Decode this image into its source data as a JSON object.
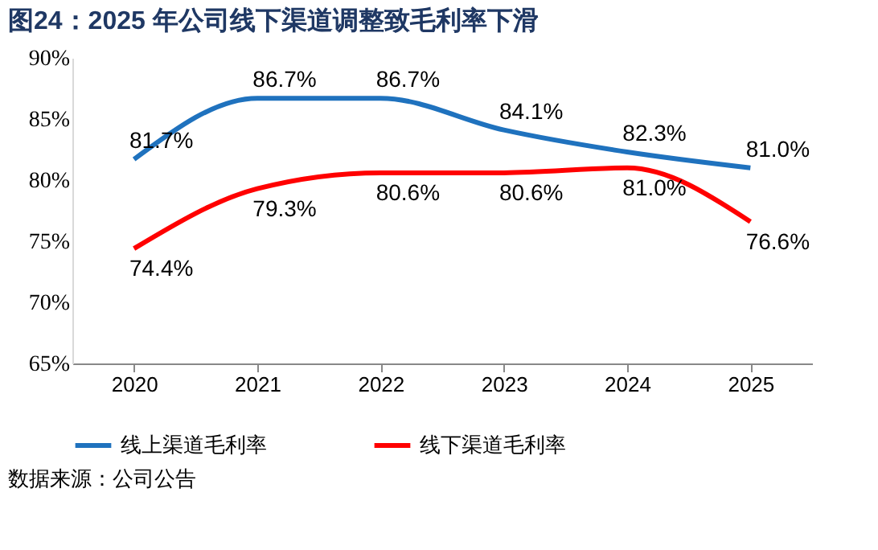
{
  "chart_data": {
    "type": "line",
    "title": "图24：2025 年公司线下渠道调整致毛利率下滑",
    "categories": [
      "2020",
      "2021",
      "2022",
      "2023",
      "2024",
      "2025"
    ],
    "series": [
      {
        "name": "线上渠道毛利率",
        "color": "#1f72be",
        "values": [
          81.7,
          86.7,
          86.7,
          84.1,
          82.3,
          81.0
        ],
        "value_labels": [
          "81.7%",
          "86.7%",
          "86.7%",
          "84.1%",
          "82.3%",
          "81.0%"
        ]
      },
      {
        "name": "线下渠道毛利率",
        "color": "#ff0000",
        "values": [
          74.4,
          79.3,
          80.6,
          80.6,
          81.0,
          76.6
        ],
        "value_labels": [
          "74.4%",
          "79.3%",
          "80.6%",
          "80.6%",
          "81.0%",
          "76.6%"
        ]
      }
    ],
    "ylim": [
      65,
      90
    ],
    "yticks": [
      {
        "value": 65,
        "label": "65%"
      },
      {
        "value": 70,
        "label": "70%"
      },
      {
        "value": 75,
        "label": "75%"
      },
      {
        "value": 80,
        "label": "80%"
      },
      {
        "value": 85,
        "label": "85%"
      },
      {
        "value": 90,
        "label": "90%"
      }
    ],
    "grid": false,
    "legend": "bottom",
    "marker": "none",
    "line_style": "solid",
    "annotations": [
      "数据来源：公司公告"
    ]
  }
}
